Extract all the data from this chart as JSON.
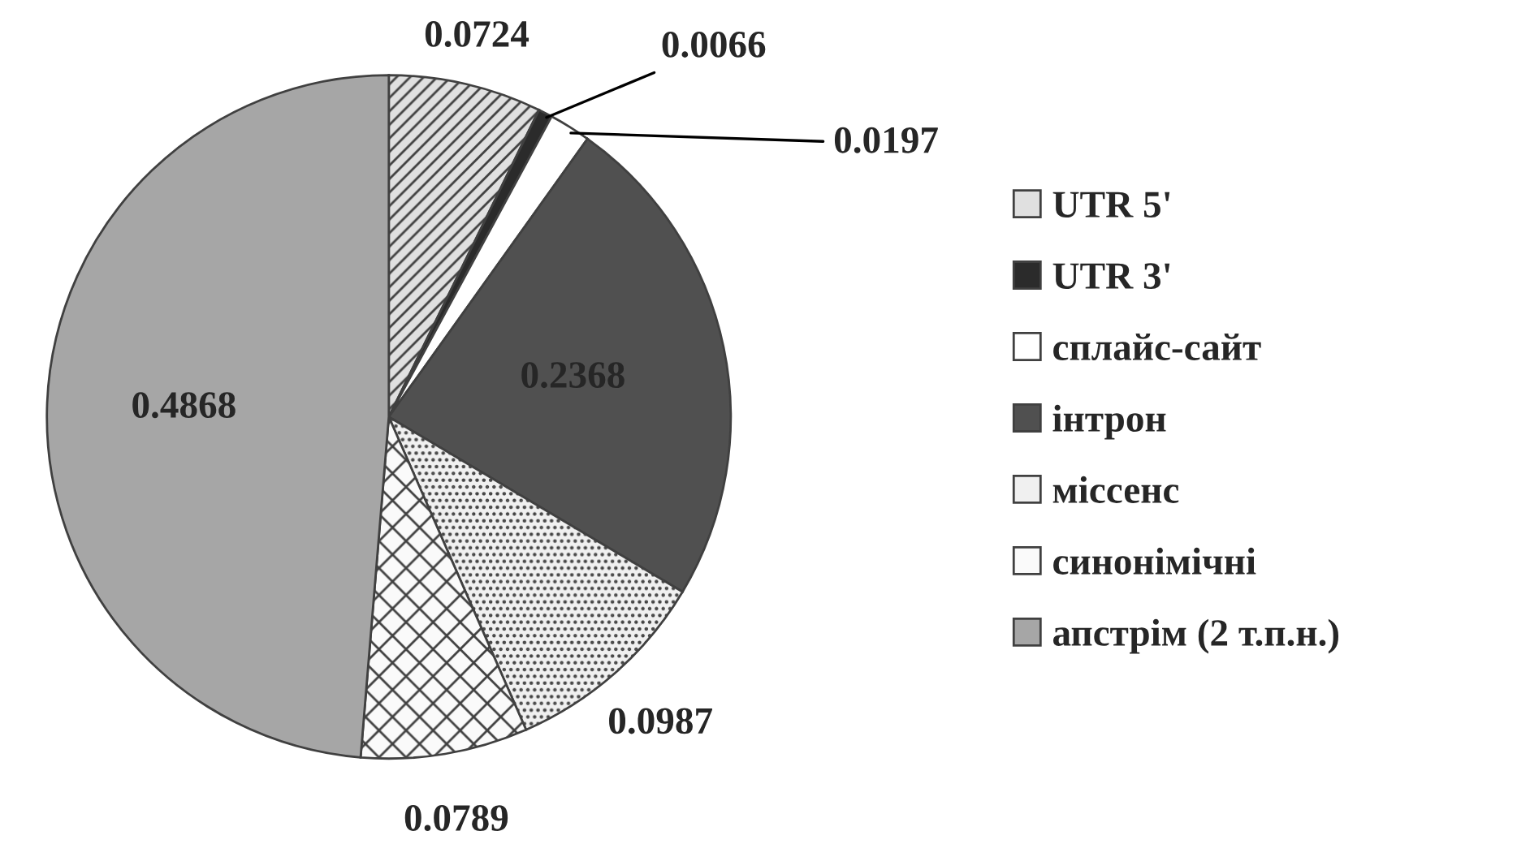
{
  "chart_data": {
    "type": "pie",
    "categories": [
      "UTR 5'",
      "UTR 3'",
      "сплайс-сайт",
      "інтрон",
      "міссенс",
      "синонімічні",
      "апстрім (2 т.п.н.)"
    ],
    "values": [
      0.0724,
      0.0066,
      0.0197,
      0.2368,
      0.0987,
      0.0789,
      0.4868
    ],
    "colors": [
      "#e0e0e0",
      "#2b2b2b",
      "#ffffff",
      "#505050",
      "#f0f0f0",
      "#fafafa",
      "#a6a6a6"
    ],
    "data_labels": true,
    "legend": "right"
  }
}
